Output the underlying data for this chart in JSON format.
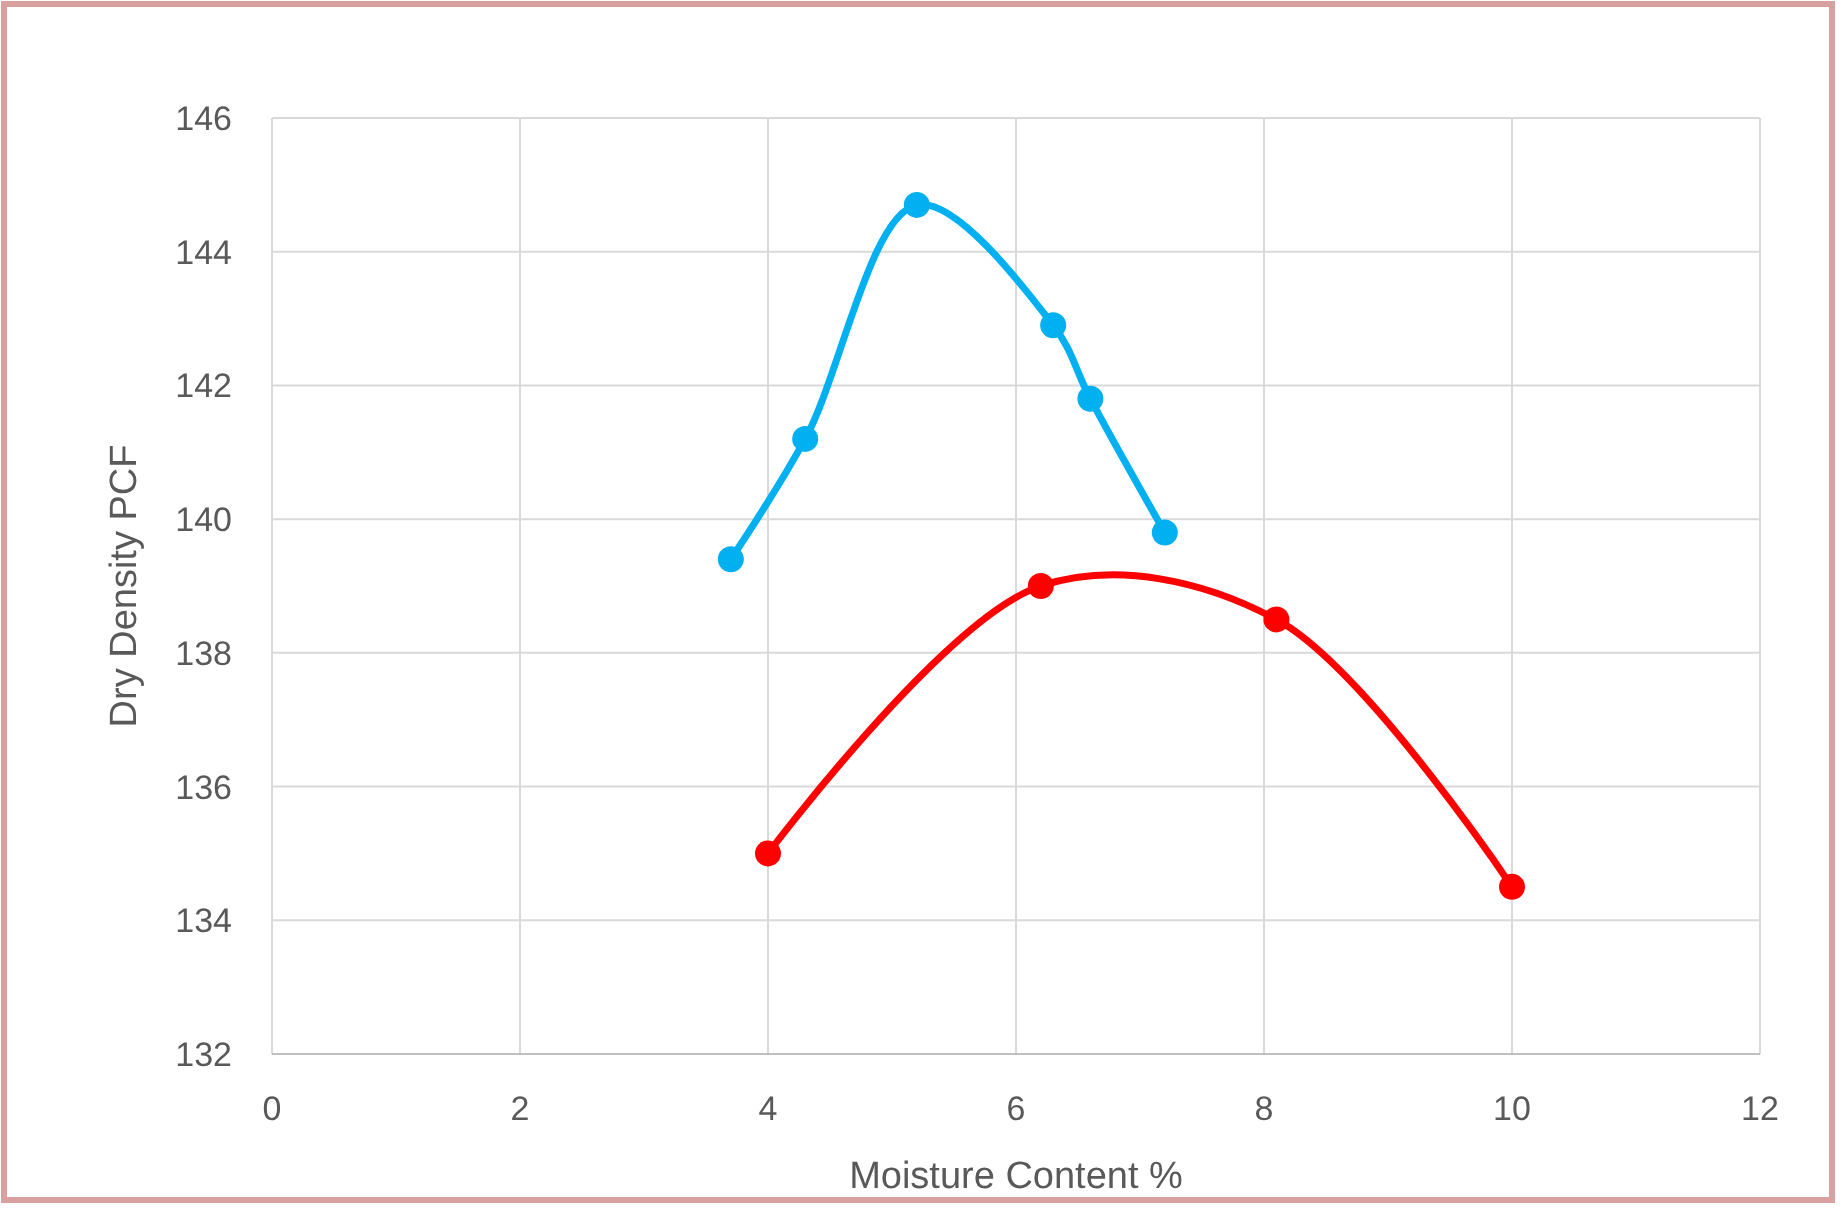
{
  "chart_data": {
    "type": "line",
    "xlabel": "Moisture Content %",
    "ylabel": "Dry Density PCF",
    "xlim": [
      0,
      12
    ],
    "xticks": [
      0,
      2,
      4,
      6,
      8,
      10,
      12
    ],
    "ylim": [
      132,
      146
    ],
    "yticks": [
      132,
      134,
      136,
      138,
      140,
      142,
      144,
      146
    ],
    "grid": true,
    "marker": "circle",
    "line_style": "solid",
    "series": [
      {
        "color": "#00b0f0",
        "x": [
          3.7,
          4.3,
          5.2,
          6.3,
          6.6,
          7.2
        ],
        "values": [
          139.4,
          141.2,
          144.7,
          142.9,
          141.8,
          139.8
        ]
      },
      {
        "color": "#ff0000",
        "x": [
          4,
          6.2,
          8.1,
          10
        ],
        "values": [
          135,
          139,
          138.5,
          134.5
        ]
      }
    ]
  }
}
